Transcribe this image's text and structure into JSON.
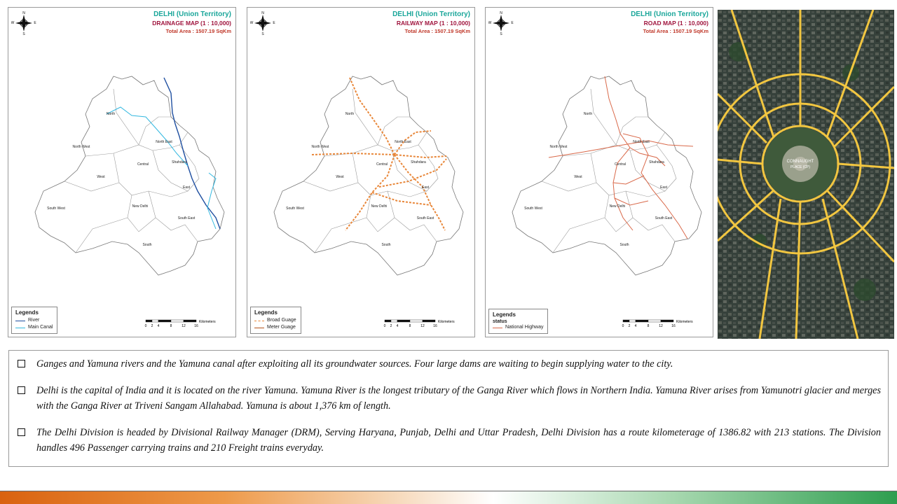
{
  "maps": [
    {
      "id": "drainage",
      "title": "DELHI (Union Territory)",
      "subtitle": "DRAINAGE MAP (1 : 10,000)",
      "area": "Total Area : 1507.19 SqKm",
      "legend_title": "Legends",
      "legend_items": [
        {
          "label": "River",
          "color": "#1f4fa0"
        },
        {
          "label": "Main Canal",
          "color": "#33b8e0"
        }
      ]
    },
    {
      "id": "railway",
      "title": "DELHI (Union Territory)",
      "subtitle": "RAILWAY MAP (1 : 10,000)",
      "area": "Total Area : 1507.19 SqKm",
      "legend_title": "Legends",
      "legend_items": [
        {
          "label": "Broad Guage",
          "color": "#e8873a"
        },
        {
          "label": "Meter Guage",
          "color": "#b5531c"
        }
      ]
    },
    {
      "id": "road",
      "title": "DELHI (Union Territory)",
      "subtitle": "ROAD MAP (1 : 10,000)",
      "area": "Total Area : 1507.19 SqKm",
      "legend_title": "Legends",
      "legend_subtitle": "status",
      "legend_items": [
        {
          "label": "National Highway",
          "color": "#d9694a"
        }
      ]
    }
  ],
  "compass": {
    "n": "N",
    "s": "S",
    "e": "E",
    "w": "W"
  },
  "scale": {
    "ticks": [
      "0",
      "2",
      "4",
      "8",
      "12",
      "16"
    ],
    "unit": "Kilometers"
  },
  "districts": [
    "North",
    "North West",
    "North East",
    "Shahdara",
    "Central",
    "West",
    "East",
    "New Delhi",
    "South West",
    "South East",
    "South"
  ],
  "photo": {
    "center_label_1": "CONNAUGHT",
    "center_label_2": "PLACE (CP)"
  },
  "bullets": [
    "Ganges and Yamuna rivers and the Yamuna canal after exploiting all its groundwater sources. Four large dams are waiting to begin supplying water to the city.",
    "Delhi is the capital of India and it is located on the river Yamuna. Yamuna River is the longest tributary of the Ganga River which flows in Northern India. Yamuna River arises from Yamunotri glacier and merges with the Ganga River at Triveni Sangam Allahabad. Yamuna is about 1,376 km of length.",
    "The Delhi Division is headed by Divisional Railway Manager (DRM), Serving Haryana, Punjab, Delhi and Uttar Pradesh, Delhi Division has a route kilometerage of 1386.82 with 213 stations. The Division handles 496 Passenger carrying trains and 210 Freight trains everyday."
  ],
  "colors": {
    "title": "#1aa69a",
    "subtitle": "#a0153e",
    "area": "#c0392b",
    "river": "#1f4fa0",
    "canal": "#33b8e0",
    "rail": "#e8873a",
    "road": "#d9694a",
    "photo_roads": "#f2c640"
  }
}
